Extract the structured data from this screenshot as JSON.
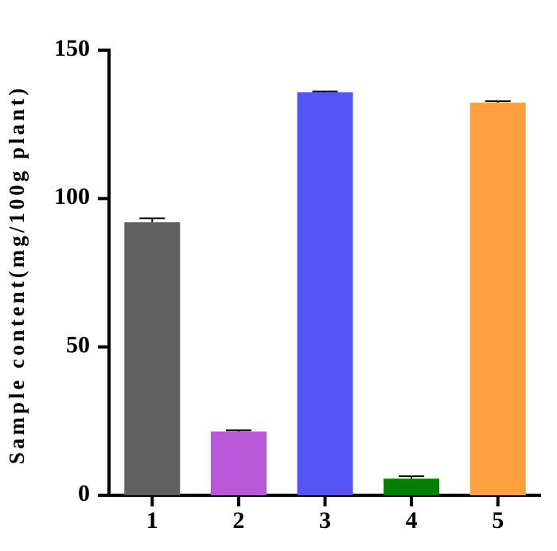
{
  "chart_data": {
    "type": "bar",
    "y_label": "Sample content(mg/100g plant)",
    "categories": [
      "1",
      "2",
      "3",
      "4",
      "5"
    ],
    "values": [
      92,
      21.5,
      135.8,
      5.6,
      132.3
    ],
    "errors": [
      1.3,
      0.4,
      0.3,
      0.8,
      0.5
    ],
    "colors": [
      "#606060",
      "#b857d8",
      "#5555f5",
      "#008000",
      "#ffa040"
    ],
    "ylim": [
      0,
      150
    ],
    "yticks": [
      0,
      50,
      100,
      150
    ],
    "grid": false
  }
}
